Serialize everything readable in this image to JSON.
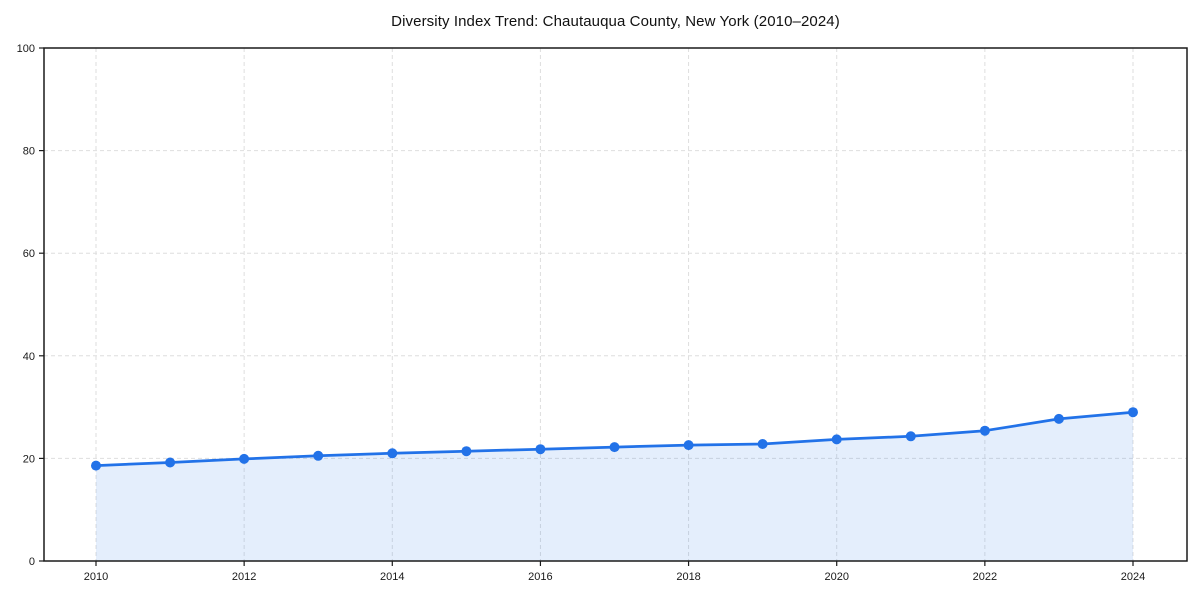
{
  "chart_data": {
    "type": "area",
    "title": "Diversity Index Trend: Chautauqua County, New York (2010–2024)",
    "x": [
      2010,
      2011,
      2012,
      2013,
      2014,
      2015,
      2016,
      2017,
      2018,
      2019,
      2020,
      2021,
      2022,
      2023,
      2024
    ],
    "series": [
      {
        "name": "Diversity Index",
        "values": [
          18.6,
          19.2,
          19.9,
          20.5,
          21.0,
          21.4,
          21.8,
          22.2,
          22.6,
          22.8,
          23.7,
          24.3,
          25.4,
          27.7,
          29.0
        ]
      }
    ],
    "xlabel": "",
    "ylabel": "",
    "ylim": [
      0,
      100
    ],
    "xticks": [
      2010,
      2012,
      2014,
      2016,
      2018,
      2020,
      2022,
      2024
    ],
    "yticks": [
      0,
      20,
      40,
      60,
      80,
      100
    ],
    "grid": true,
    "legend": false,
    "line_color": "#2272e8",
    "marker_color": "#2272e8",
    "fill_color": "#2272e8",
    "fill_opacity": 0.12,
    "axis_color": "#1a1a1a",
    "grid_color": "#dedede",
    "background_color": "#ffffff"
  }
}
